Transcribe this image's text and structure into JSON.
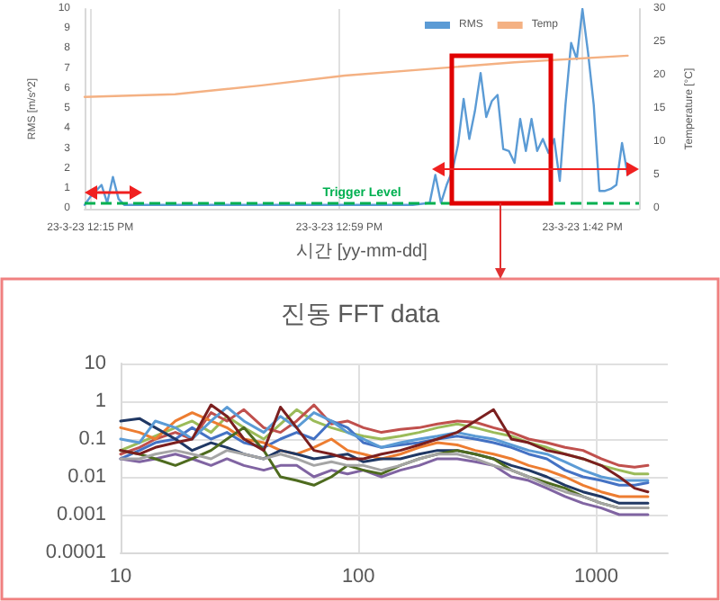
{
  "chart_data": [
    {
      "type": "line",
      "xlabel": "시간 [yy-mm-dd]",
      "ylabel": "RMS [m/s^2]",
      "y2label": "Temperature [°C]",
      "xlim": [
        "--03-23T12:14",
        "--03-23T13:52"
      ],
      "xticks": [
        {
          "value": "--03-23T12:15",
          "label": "23-3-23 12:15 PM"
        },
        {
          "value": "--03-23T12:59",
          "label": "23-3-23 12:59 PM"
        },
        {
          "value": "--03-23T13:42",
          "label": "23-3-23 1:42 PM"
        }
      ],
      "ylim": [
        0,
        10
      ],
      "yticks": [
        0,
        1,
        2,
        3,
        4,
        5,
        6,
        7,
        8,
        9,
        10
      ],
      "y2lim": [
        0,
        30
      ],
      "y2ticks": [
        0,
        5,
        10,
        15,
        20,
        25,
        30
      ],
      "grid": "x",
      "legend": "top right",
      "marker": "none",
      "line_style": "solid",
      "series": [
        {
          "name": "RMS",
          "color": "#5b9bd5",
          "x": [
            "--03-23T12:14",
            "--03-23T12:15",
            "--03-23T12:17",
            "--03-23T12:18",
            "--03-23T12:19",
            "--03-23T12:20",
            "--03-23T12:21",
            "--03-23T13:12",
            "--03-23T13:15",
            "--03-23T13:16",
            "--03-23T13:17",
            "--03-23T13:18",
            "--03-23T13:19",
            "--03-23T13:20",
            "--03-23T13:21",
            "--03-23T13:22",
            "--03-23T13:23",
            "--03-23T13:24",
            "--03-23T13:25",
            "--03-23T13:26",
            "--03-23T13:27",
            "--03-23T13:28",
            "--03-23T13:29",
            "--03-23T13:30",
            "--03-23T13:31",
            "--03-23T13:32",
            "--03-23T13:33",
            "--03-23T13:34",
            "--03-23T13:35",
            "--03-23T13:36",
            "--03-23T13:37",
            "--03-23T13:38",
            "--03-23T13:39",
            "--03-23T13:40",
            "--03-23T13:41",
            "--03-23T13:42",
            "--03-23T13:43",
            "--03-23T13:44",
            "--03-23T13:45",
            "--03-23T13:46",
            "--03-23T13:47",
            "--03-23T13:48",
            "--03-23T13:49",
            "--03-23T13:50"
          ],
          "values": [
            0.2,
            0.6,
            1.2,
            0.3,
            1.6,
            0.5,
            0.2,
            0.2,
            0.3,
            1.7,
            0.3,
            1.2,
            1.9,
            3.2,
            5.5,
            3.5,
            4.9,
            6.8,
            4.6,
            5.4,
            5.7,
            3.0,
            2.9,
            2.3,
            4.5,
            2.9,
            4.5,
            2.9,
            3.5,
            2.8,
            3.5,
            1.4,
            5.2,
            8.3,
            7.5,
            10,
            7.8,
            5.2,
            0.9,
            0.9,
            1.0,
            1.2,
            3.3,
            1.7
          ]
        },
        {
          "name": "Temp",
          "color": "#f4b183",
          "axis": "y2",
          "x": [
            "--03-23T12:14",
            "--03-23T12:30",
            "--03-23T12:45",
            "--03-23T13:00",
            "--03-23T13:15",
            "--03-23T13:30",
            "--03-23T13:50"
          ],
          "values": [
            16.8,
            17.2,
            18.5,
            20.0,
            21.0,
            22.0,
            23.0
          ]
        }
      ],
      "ref_lines": [
        {
          "axis": "y",
          "value": 0.3,
          "label": "Trigger Level",
          "color": "#00b050",
          "line_style": "dashed"
        }
      ]
    },
    {
      "type": "line",
      "title": "진동 FFT data",
      "log": "xy",
      "xlim": [
        10,
        2000
      ],
      "xticks": [
        10,
        100,
        1000
      ],
      "ylim": [
        0.0001,
        10
      ],
      "yticks": [
        0.0001,
        0.001,
        0.01,
        0.1,
        1,
        10
      ],
      "grid": true,
      "legend": false,
      "marker": "none",
      "line_style": "solid",
      "x": [
        10,
        12,
        14,
        17,
        20,
        24,
        28,
        33,
        40,
        47,
        55,
        65,
        77,
        90,
        105,
        125,
        150,
        180,
        215,
        260,
        310,
        370,
        440,
        520,
        620,
        740,
        880,
        1050,
        1250,
        1450,
        1650
      ],
      "series": [
        {
          "color": "#9bbb59",
          "values": [
            0.05,
            0.08,
            0.12,
            0.2,
            0.3,
            0.15,
            0.4,
            0.2,
            0.1,
            0.25,
            0.6,
            0.3,
            0.2,
            0.15,
            0.12,
            0.1,
            0.12,
            0.15,
            0.2,
            0.25,
            0.2,
            0.15,
            0.12,
            0.08,
            0.06,
            0.04,
            0.03,
            0.02,
            0.015,
            0.012,
            0.012
          ]
        },
        {
          "color": "#c0504d",
          "values": [
            0.04,
            0.06,
            0.1,
            0.15,
            0.1,
            0.5,
            0.3,
            0.6,
            0.2,
            0.15,
            0.3,
            0.8,
            0.25,
            0.3,
            0.2,
            0.15,
            0.18,
            0.2,
            0.25,
            0.3,
            0.28,
            0.2,
            0.15,
            0.1,
            0.08,
            0.06,
            0.05,
            0.03,
            0.02,
            0.018,
            0.02
          ]
        },
        {
          "color": "#4472c4",
          "values": [
            0.03,
            0.05,
            0.08,
            0.1,
            0.2,
            0.1,
            0.15,
            0.08,
            0.06,
            0.1,
            0.15,
            0.1,
            0.3,
            0.2,
            0.08,
            0.06,
            0.07,
            0.08,
            0.1,
            0.12,
            0.1,
            0.08,
            0.06,
            0.04,
            0.03,
            0.015,
            0.01,
            0.008,
            0.006,
            0.006,
            0.007
          ]
        },
        {
          "color": "#ed7d31",
          "values": [
            0.2,
            0.15,
            0.1,
            0.3,
            0.5,
            0.3,
            0.2,
            0.1,
            0.08,
            0.05,
            0.04,
            0.06,
            0.1,
            0.05,
            0.04,
            0.03,
            0.04,
            0.06,
            0.08,
            0.07,
            0.05,
            0.04,
            0.03,
            0.02,
            0.015,
            0.01,
            0.006,
            0.004,
            0.003,
            0.003,
            0.003
          ]
        },
        {
          "color": "#203864",
          "values": [
            0.3,
            0.35,
            0.2,
            0.1,
            0.05,
            0.08,
            0.06,
            0.04,
            0.03,
            0.05,
            0.04,
            0.03,
            0.035,
            0.04,
            0.025,
            0.03,
            0.03,
            0.04,
            0.05,
            0.05,
            0.04,
            0.03,
            0.02,
            0.015,
            0.01,
            0.006,
            0.004,
            0.003,
            0.002,
            0.002,
            0.002
          ]
        },
        {
          "color": "#8064a2",
          "values": [
            0.03,
            0.025,
            0.03,
            0.04,
            0.03,
            0.02,
            0.03,
            0.02,
            0.015,
            0.02,
            0.02,
            0.01,
            0.015,
            0.012,
            0.015,
            0.01,
            0.015,
            0.02,
            0.03,
            0.03,
            0.025,
            0.02,
            0.01,
            0.008,
            0.005,
            0.003,
            0.002,
            0.0015,
            0.001,
            0.001,
            0.001
          ]
        },
        {
          "color": "#4e6b1f",
          "values": [
            0.05,
            0.04,
            0.03,
            0.02,
            0.03,
            0.05,
            0.1,
            0.2,
            0.05,
            0.01,
            0.008,
            0.006,
            0.01,
            0.02,
            0.015,
            0.012,
            0.02,
            0.03,
            0.04,
            0.05,
            0.04,
            0.03,
            0.015,
            0.01,
            0.007,
            0.005,
            0.003,
            0.002,
            0.0015,
            0.0015,
            0.0015
          ]
        },
        {
          "color": "#5b9bd5",
          "values": [
            0.1,
            0.08,
            0.3,
            0.2,
            0.1,
            0.3,
            0.7,
            0.3,
            0.15,
            0.4,
            0.2,
            0.5,
            0.3,
            0.15,
            0.1,
            0.06,
            0.08,
            0.1,
            0.12,
            0.15,
            0.12,
            0.1,
            0.07,
            0.05,
            0.04,
            0.025,
            0.015,
            0.01,
            0.008,
            0.008,
            0.008
          ]
        },
        {
          "color": "#7b1f1f",
          "values": [
            0.05,
            0.04,
            0.06,
            0.08,
            0.1,
            0.8,
            0.4,
            0.1,
            0.05,
            0.7,
            0.2,
            0.05,
            0.04,
            0.03,
            0.03,
            0.04,
            0.05,
            0.07,
            0.1,
            0.15,
            0.3,
            0.6,
            0.1,
            0.08,
            0.05,
            0.04,
            0.03,
            0.02,
            0.01,
            0.005,
            0.004
          ]
        },
        {
          "color": "#a5a5a5",
          "values": [
            0.03,
            0.03,
            0.04,
            0.05,
            0.04,
            0.03,
            0.05,
            0.04,
            0.03,
            0.04,
            0.03,
            0.02,
            0.025,
            0.02,
            0.02,
            0.015,
            0.02,
            0.03,
            0.04,
            0.04,
            0.03,
            0.02,
            0.015,
            0.01,
            0.006,
            0.004,
            0.003,
            0.002,
            0.0015,
            0.0015,
            0.0015
          ]
        }
      ]
    }
  ]
}
